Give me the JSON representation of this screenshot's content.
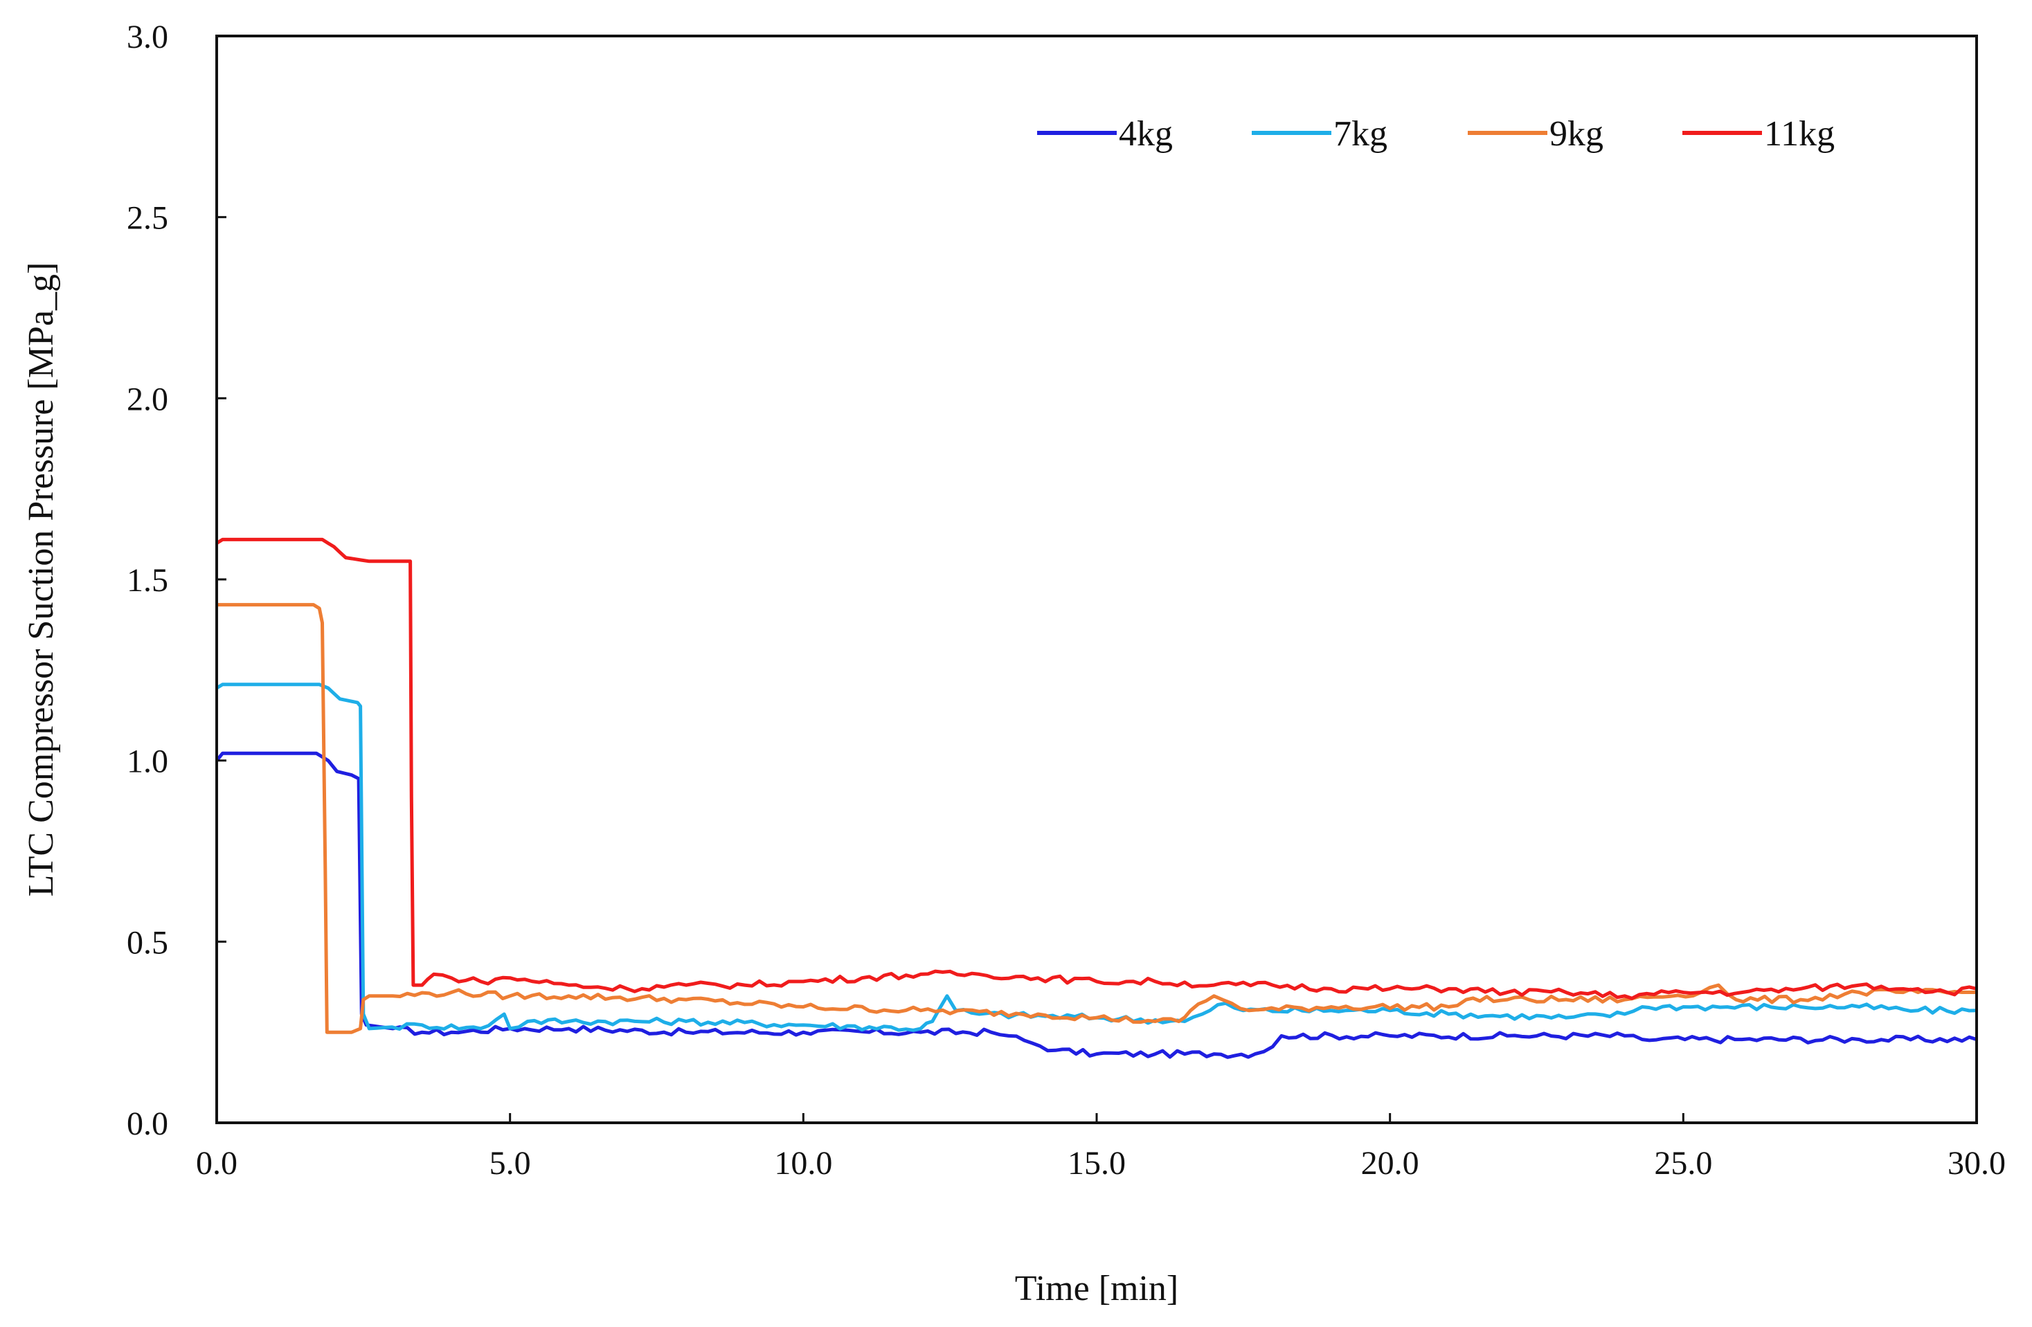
{
  "chart_data": {
    "type": "line",
    "title": "",
    "xlabel": "Time [min]",
    "ylabel": "LTC Compressor Suction Pressure [MPa_g]",
    "xlim": [
      0,
      30
    ],
    "ylim": [
      0,
      3
    ],
    "xticks": [
      "0.0",
      "5.0",
      "10.0",
      "15.0",
      "20.0",
      "25.0",
      "30.0"
    ],
    "yticks": [
      "0.0",
      "0.5",
      "1.0",
      "1.5",
      "2.0",
      "2.5",
      "3.0"
    ],
    "grid": false,
    "legend_position": "top-right",
    "series": [
      {
        "name": "4kg",
        "color": "#1f1fe0",
        "points": [
          [
            0,
            1.0
          ],
          [
            0.1,
            1.02
          ],
          [
            1.7,
            1.02
          ],
          [
            1.9,
            1.0
          ],
          [
            2.05,
            0.97
          ],
          [
            2.3,
            0.96
          ],
          [
            2.42,
            0.95
          ],
          [
            2.47,
            0.3
          ],
          [
            2.55,
            0.27
          ],
          [
            3.0,
            0.26
          ],
          [
            3.5,
            0.25
          ],
          [
            4.0,
            0.25
          ],
          [
            5.0,
            0.26
          ],
          [
            6.0,
            0.26
          ],
          [
            8.0,
            0.25
          ],
          [
            10.0,
            0.25
          ],
          [
            12.0,
            0.25
          ],
          [
            13.2,
            0.25
          ],
          [
            13.5,
            0.24
          ],
          [
            13.9,
            0.22
          ],
          [
            14.3,
            0.2
          ],
          [
            15.0,
            0.19
          ],
          [
            16.0,
            0.19
          ],
          [
            17.0,
            0.19
          ],
          [
            17.7,
            0.19
          ],
          [
            18.0,
            0.21
          ],
          [
            18.15,
            0.24
          ],
          [
            20.0,
            0.24
          ],
          [
            22.0,
            0.24
          ],
          [
            24.0,
            0.24
          ],
          [
            24.3,
            0.23
          ],
          [
            26.0,
            0.23
          ],
          [
            28.0,
            0.23
          ],
          [
            30.0,
            0.23
          ]
        ]
      },
      {
        "name": "7kg",
        "color": "#1eaee8",
        "points": [
          [
            0,
            1.2
          ],
          [
            0.1,
            1.21
          ],
          [
            1.75,
            1.21
          ],
          [
            1.9,
            1.2
          ],
          [
            2.1,
            1.17
          ],
          [
            2.4,
            1.16
          ],
          [
            2.45,
            1.15
          ],
          [
            2.5,
            0.3
          ],
          [
            2.6,
            0.26
          ],
          [
            3.5,
            0.27
          ],
          [
            4.5,
            0.26
          ],
          [
            4.9,
            0.3
          ],
          [
            5.0,
            0.26
          ],
          [
            5.3,
            0.28
          ],
          [
            6.0,
            0.28
          ],
          [
            8.0,
            0.28
          ],
          [
            10.0,
            0.27
          ],
          [
            12.0,
            0.26
          ],
          [
            12.2,
            0.28
          ],
          [
            12.45,
            0.35
          ],
          [
            12.6,
            0.31
          ],
          [
            13.0,
            0.3
          ],
          [
            15.0,
            0.29
          ],
          [
            16.5,
            0.28
          ],
          [
            16.8,
            0.3
          ],
          [
            17.2,
            0.33
          ],
          [
            17.5,
            0.31
          ],
          [
            19.0,
            0.31
          ],
          [
            20.0,
            0.31
          ],
          [
            21.0,
            0.3
          ],
          [
            23.0,
            0.29
          ],
          [
            24.0,
            0.3
          ],
          [
            24.3,
            0.32
          ],
          [
            25.0,
            0.32
          ],
          [
            27.0,
            0.32
          ],
          [
            28.0,
            0.32
          ],
          [
            29.0,
            0.31
          ],
          [
            30.0,
            0.31
          ]
        ]
      },
      {
        "name": "9kg",
        "color": "#ee7e34",
        "points": [
          [
            0,
            1.43
          ],
          [
            1.65,
            1.43
          ],
          [
            1.75,
            1.42
          ],
          [
            1.8,
            1.38
          ],
          [
            1.85,
            0.7
          ],
          [
            1.88,
            0.25
          ],
          [
            2.0,
            0.25
          ],
          [
            2.3,
            0.25
          ],
          [
            2.45,
            0.26
          ],
          [
            2.5,
            0.34
          ],
          [
            2.6,
            0.35
          ],
          [
            3.0,
            0.35
          ],
          [
            4.0,
            0.36
          ],
          [
            5.0,
            0.35
          ],
          [
            6.0,
            0.35
          ],
          [
            8.0,
            0.34
          ],
          [
            10.0,
            0.32
          ],
          [
            12.0,
            0.31
          ],
          [
            14.0,
            0.3
          ],
          [
            15.0,
            0.29
          ],
          [
            16.0,
            0.28
          ],
          [
            16.4,
            0.28
          ],
          [
            16.6,
            0.31
          ],
          [
            17.0,
            0.35
          ],
          [
            17.3,
            0.33
          ],
          [
            17.6,
            0.31
          ],
          [
            19.0,
            0.32
          ],
          [
            21.0,
            0.32
          ],
          [
            21.3,
            0.34
          ],
          [
            22.0,
            0.34
          ],
          [
            24.0,
            0.34
          ],
          [
            25.3,
            0.36
          ],
          [
            25.6,
            0.38
          ],
          [
            25.9,
            0.34
          ],
          [
            27.0,
            0.34
          ],
          [
            28.0,
            0.36
          ],
          [
            29.0,
            0.36
          ],
          [
            30.0,
            0.36
          ]
        ]
      },
      {
        "name": "11kg",
        "color": "#f01c1c",
        "points": [
          [
            0,
            1.6
          ],
          [
            0.1,
            1.61
          ],
          [
            1.8,
            1.61
          ],
          [
            2.0,
            1.59
          ],
          [
            2.2,
            1.56
          ],
          [
            2.6,
            1.55
          ],
          [
            3.0,
            1.55
          ],
          [
            3.2,
            1.55
          ],
          [
            3.3,
            1.55
          ],
          [
            3.32,
            0.9
          ],
          [
            3.35,
            0.38
          ],
          [
            3.5,
            0.38
          ],
          [
            3.7,
            0.41
          ],
          [
            4.0,
            0.4
          ],
          [
            4.5,
            0.39
          ],
          [
            5.0,
            0.4
          ],
          [
            6.0,
            0.38
          ],
          [
            7.0,
            0.37
          ],
          [
            8.0,
            0.38
          ],
          [
            9.0,
            0.38
          ],
          [
            10.0,
            0.39
          ],
          [
            11.0,
            0.4
          ],
          [
            12.0,
            0.41
          ],
          [
            13.0,
            0.41
          ],
          [
            14.0,
            0.4
          ],
          [
            15.0,
            0.39
          ],
          [
            16.0,
            0.39
          ],
          [
            17.0,
            0.38
          ],
          [
            18.0,
            0.38
          ],
          [
            19.0,
            0.37
          ],
          [
            20.0,
            0.37
          ],
          [
            21.0,
            0.37
          ],
          [
            22.0,
            0.36
          ],
          [
            23.0,
            0.36
          ],
          [
            24.0,
            0.35
          ],
          [
            25.0,
            0.36
          ],
          [
            26.0,
            0.36
          ],
          [
            27.0,
            0.37
          ],
          [
            28.0,
            0.38
          ],
          [
            29.0,
            0.37
          ],
          [
            29.5,
            0.36
          ],
          [
            30.0,
            0.37
          ]
        ]
      }
    ]
  }
}
